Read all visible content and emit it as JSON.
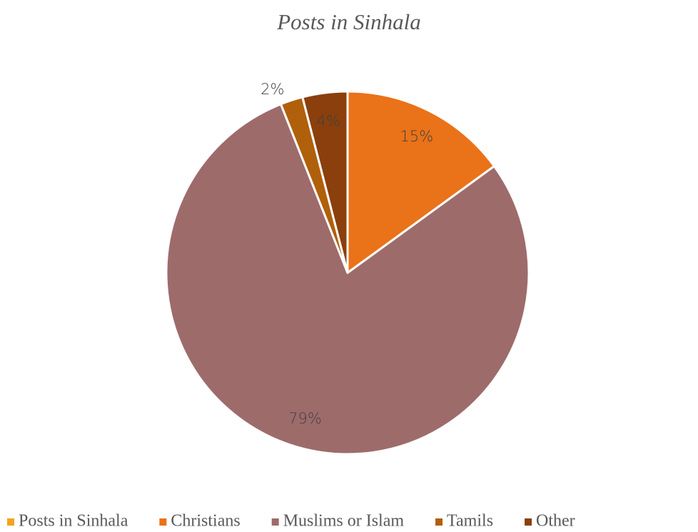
{
  "chart_data": {
    "type": "pie",
    "title": "Posts in Sinhala",
    "categories": [
      "Posts in Sinhala",
      "Christians",
      "Muslims or Islam",
      "Tamils",
      "Other"
    ],
    "values": [
      0,
      15,
      79,
      2,
      4
    ],
    "value_labels": [
      null,
      "15%",
      "79%",
      "2%",
      "4%"
    ],
    "colors": [
      "#f5a31c",
      "#ea7219",
      "#9e6b6b",
      "#b0600a",
      "#8b3f0c"
    ],
    "legend": "bottom"
  }
}
